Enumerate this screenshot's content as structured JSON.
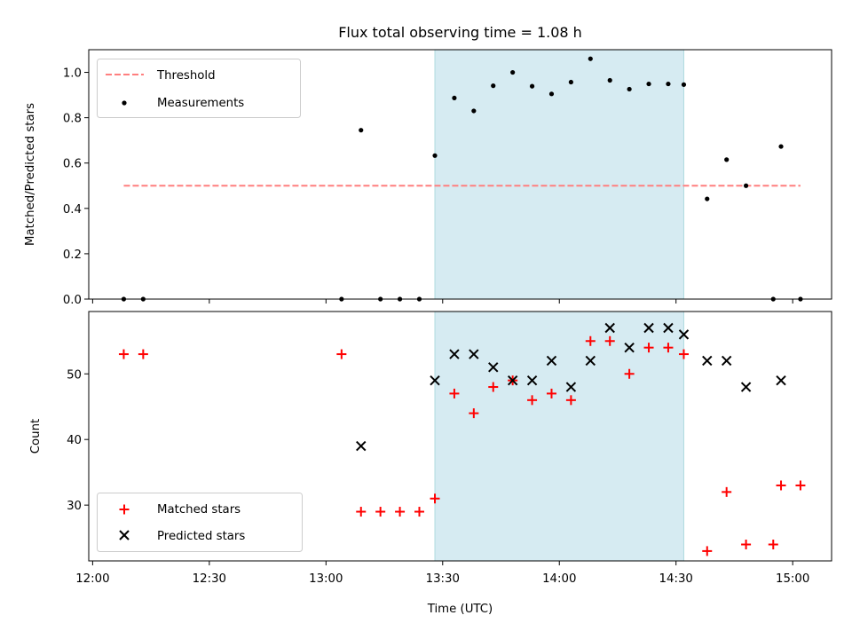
{
  "figure_title": "Flux total observing time = 1.08 h",
  "colors": {
    "threshold": "#ff7f7f",
    "measurement": "#000000",
    "matched": "#ff0000",
    "predicted": "#000000",
    "span_fill": "#add8e6",
    "span_edge": "#b0dbe0"
  },
  "chart_data": [
    {
      "type": "scatter",
      "panel": "top",
      "title": "Flux total observing time = 1.08 h",
      "ylabel": "Matched/Predicted stars",
      "ylim": [
        0.0,
        1.1
      ],
      "xlim": [
        "11:59",
        "15:10"
      ],
      "yticks": [
        "0.0",
        "0.2",
        "0.4",
        "0.6",
        "0.8",
        "1.0"
      ],
      "yticks_values": [
        0.0,
        0.2,
        0.4,
        0.6,
        0.8,
        1.0
      ],
      "highlight_span": [
        "13:28",
        "14:32"
      ],
      "legend": {
        "placement": "upper left",
        "entries": [
          "Threshold",
          "Measurements"
        ]
      },
      "series": [
        {
          "name": "Threshold",
          "kind": "dashed-line",
          "x": [
            "12:08",
            "15:02"
          ],
          "y": [
            0.5,
            0.5
          ]
        },
        {
          "name": "Measurements",
          "kind": "dots",
          "x": [
            "12:08",
            "12:13",
            "13:04",
            "13:09",
            "13:14",
            "13:19",
            "13:24",
            "13:28",
            "13:33",
            "13:38",
            "13:43",
            "13:48",
            "13:53",
            "13:58",
            "14:03",
            "14:08",
            "14:13",
            "14:18",
            "14:23",
            "14:28",
            "14:32",
            "14:38",
            "14:43",
            "14:48",
            "14:55",
            "14:57",
            "15:02"
          ],
          "y": [
            0.0,
            0.0,
            0.0,
            0.745,
            0.0,
            0.0,
            0.0,
            0.633,
            0.887,
            0.83,
            0.941,
            1.0,
            0.939,
            0.905,
            0.957,
            1.06,
            0.965,
            0.926,
            0.949,
            0.949,
            0.946,
            0.442,
            0.615,
            0.5,
            0.0,
            0.673,
            0.0
          ]
        }
      ]
    },
    {
      "type": "scatter",
      "panel": "bottom",
      "xlabel": "Time (UTC)",
      "ylabel": "Count",
      "ylim": [
        21.5,
        59.5
      ],
      "xlim": [
        "11:59",
        "15:10"
      ],
      "xticks": [
        "12:00",
        "12:30",
        "13:00",
        "13:30",
        "14:00",
        "14:30",
        "15:00"
      ],
      "yticks": [
        "30",
        "40",
        "50"
      ],
      "yticks_values": [
        30,
        40,
        50
      ],
      "highlight_span": [
        "13:28",
        "14:32"
      ],
      "legend": {
        "placement": "lower left",
        "entries": [
          "Matched stars",
          "Predicted stars"
        ]
      },
      "series": [
        {
          "name": "Matched stars",
          "kind": "plus",
          "x": [
            "12:08",
            "12:13",
            "13:04",
            "13:09",
            "13:14",
            "13:19",
            "13:24",
            "13:28",
            "13:33",
            "13:38",
            "13:43",
            "13:48",
            "13:53",
            "13:58",
            "14:03",
            "14:08",
            "14:13",
            "14:18",
            "14:23",
            "14:28",
            "14:32",
            "14:38",
            "14:43",
            "14:48",
            "14:55",
            "14:57",
            "15:02"
          ],
          "y": [
            53,
            53,
            53,
            29,
            29,
            29,
            29,
            31,
            47,
            44,
            48,
            49,
            46,
            47,
            46,
            55,
            55,
            50,
            54,
            54,
            53,
            23,
            32,
            24,
            24,
            33,
            33
          ]
        },
        {
          "name": "Predicted stars",
          "kind": "x",
          "x": [
            "13:09",
            "13:28",
            "13:33",
            "13:38",
            "13:43",
            "13:48",
            "13:53",
            "13:58",
            "14:03",
            "14:08",
            "14:13",
            "14:18",
            "14:23",
            "14:28",
            "14:32",
            "14:38",
            "14:43",
            "14:48",
            "14:57"
          ],
          "y": [
            39,
            49,
            53,
            53,
            51,
            49,
            49,
            52,
            48,
            52,
            57,
            54,
            57,
            57,
            56,
            52,
            52,
            48,
            49
          ]
        }
      ]
    }
  ]
}
